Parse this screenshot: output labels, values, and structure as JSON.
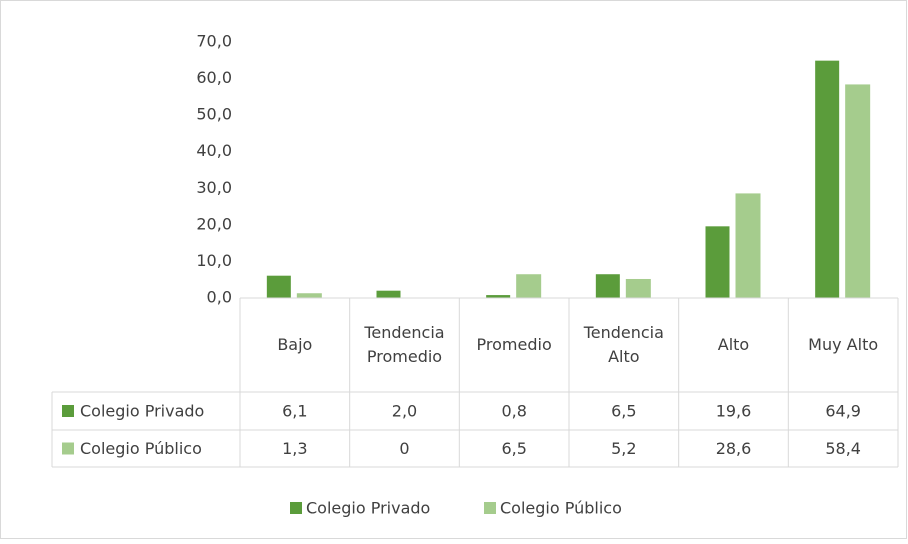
{
  "chart_data": {
    "type": "bar",
    "categories": [
      "Bajo",
      "Tendencia Promedio",
      "Promedio",
      "Tendencia Alto",
      "Alto",
      "Muy Alto"
    ],
    "series": [
      {
        "name": "Colegio Privado",
        "color": "#5b9c3b",
        "values": [
          6.1,
          2.0,
          0.8,
          6.5,
          19.6,
          64.9
        ],
        "value_labels": [
          "6,1",
          "2,0",
          "0,8",
          "6,5",
          "19,6",
          "64,9"
        ]
      },
      {
        "name": "Colegio Público",
        "color": "#a5cc8d",
        "values": [
          1.3,
          0,
          6.5,
          5.2,
          28.6,
          58.4
        ],
        "value_labels": [
          "1,3",
          "0",
          "6,5",
          "5,2",
          "28,6",
          "58,4"
        ]
      }
    ],
    "ylim": [
      0,
      70
    ],
    "yticks": [
      {
        "value": 0,
        "label": "0,0"
      },
      {
        "value": 10,
        "label": "10,0"
      },
      {
        "value": 20,
        "label": "20,0"
      },
      {
        "value": 30,
        "label": "30,0"
      },
      {
        "value": 40,
        "label": "40,0"
      },
      {
        "value": 50,
        "label": "50,0"
      },
      {
        "value": 60,
        "label": "60,0"
      },
      {
        "value": 70,
        "label": "70,0"
      }
    ],
    "grid": false,
    "legend": "bottom"
  }
}
